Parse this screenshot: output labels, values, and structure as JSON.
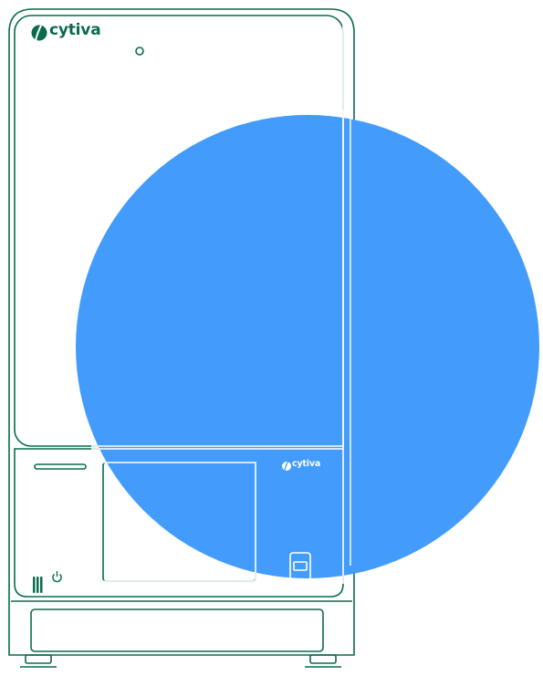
{
  "device": {
    "brand": "cytiva",
    "front_brand": "cytiva",
    "icons": {
      "brand_mark": "cytiva-logo-icon",
      "indicator": "indicator-light-icon",
      "power": "power-icon",
      "vent": "vent-grille-icon",
      "usb": "usb-port-icon"
    }
  },
  "colors": {
    "outline": "#0a6b4e",
    "circle": "#439cfb",
    "background": "#ffffff"
  }
}
